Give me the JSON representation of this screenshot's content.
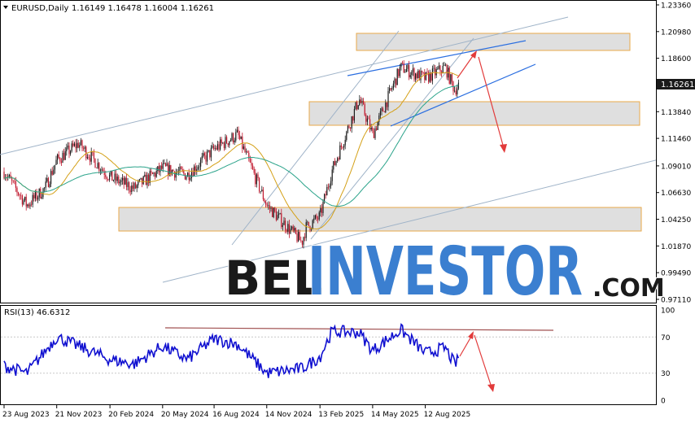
{
  "header": {
    "symbol": "EURUSD,Daily",
    "ohlc": "1.16149 1.16478 1.16004 1.16261"
  },
  "watermark": {
    "text_left": "BEL",
    "text_right": "INVESTOR",
    "text_suffix": ".COM",
    "color_left": "#1a1a1a",
    "color_right": "#3b7fd0"
  },
  "colors": {
    "candle_up": "#1a1a1a",
    "candle_down": "#c0162c",
    "ma_fast": "#d4a017",
    "ma_slow": "#2aa38a",
    "rsi_line": "#1010d0",
    "channel_blue": "#2a6ee0",
    "channel_gray": "#9fb3c8",
    "arrow": "#e23b3b",
    "zone_fill": "#d9d9d9",
    "zone_border": "#e8a94a",
    "current_price_bg": "#1a1a1a"
  },
  "chart_data": [
    {
      "type": "candlestick",
      "title": "EURUSD,Daily",
      "ylim": [
        0.9711,
        1.2336
      ],
      "y_ticks": [
        "1.23360",
        "1.20980",
        "1.18600",
        "1.16261",
        "1.13840",
        "1.11460",
        "1.09010",
        "1.06630",
        "1.04250",
        "1.01870",
        "0.99490",
        "0.97110"
      ],
      "current_price": "1.16261",
      "x_ticks": [
        "23 Aug 2023",
        "21 Nov 2023",
        "20 Feb 2024",
        "20 May 2024",
        "16 Aug 2024",
        "14 Nov 2024",
        "13 Feb 2025",
        "14 May 2025",
        "12 Aug 2025"
      ],
      "close_path": [
        [
          "23 Aug 2023",
          1.085
        ],
        [
          "1 Oct 2023",
          1.055
        ],
        [
          "1 Nov 2023",
          1.07
        ],
        [
          "21 Nov 2023",
          1.095
        ],
        [
          "28 Dec 2023",
          1.11
        ],
        [
          "20 Feb 2024",
          1.08
        ],
        [
          "1 Apr 2024",
          1.07
        ],
        [
          "20 May 2024",
          1.088
        ],
        [
          "1 Jul 2024",
          1.082
        ],
        [
          "16 Aug 2024",
          1.105
        ],
        [
          "25 Sep 2024",
          1.118
        ],
        [
          "14 Nov 2024",
          1.055
        ],
        [
          "13 Jan 2025",
          1.022
        ],
        [
          "20 Jan 2025",
          1.035
        ],
        [
          "13 Feb 2025",
          1.045
        ],
        [
          "5 Mar 2025",
          1.085
        ],
        [
          "21 Apr 2025",
          1.15
        ],
        [
          "14 May 2025",
          1.118
        ],
        [
          "1 Jul 2025",
          1.178
        ],
        [
          "12 Aug 2025",
          1.168
        ],
        [
          "15 Sep 2025",
          1.178
        ],
        [
          "1 Oct 2025",
          1.158
        ],
        [
          "10 Oct 2025",
          1.163
        ]
      ]
    },
    {
      "type": "line",
      "title": "RSI(13) 46.6312",
      "ylim": [
        0,
        100
      ],
      "y_ticks": [
        "100",
        "70",
        "30",
        "0"
      ],
      "close_path": [
        [
          "23 Aug 2023",
          38
        ],
        [
          "1 Oct 2023",
          30
        ],
        [
          "21 Nov 2023",
          70
        ],
        [
          "28 Dec 2023",
          60
        ],
        [
          "20 Feb 2024",
          45
        ],
        [
          "1 Apr 2024",
          40
        ],
        [
          "20 May 2024",
          60
        ],
        [
          "1 Jul 2024",
          45
        ],
        [
          "16 Aug 2024",
          68
        ],
        [
          "25 Sep 2024",
          62
        ],
        [
          "14 Nov 2024",
          30
        ],
        [
          "13 Jan 2025",
          35
        ],
        [
          "13 Feb 2025",
          48
        ],
        [
          "5 Mar 2025",
          76
        ],
        [
          "21 Apr 2025",
          75
        ],
        [
          "14 May 2025",
          55
        ],
        [
          "1 Jul 2025",
          78
        ],
        [
          "12 Aug 2025",
          52
        ],
        [
          "15 Sep 2025",
          58
        ],
        [
          "1 Oct 2025",
          40
        ],
        [
          "10 Oct 2025",
          46.63
        ]
      ]
    }
  ]
}
